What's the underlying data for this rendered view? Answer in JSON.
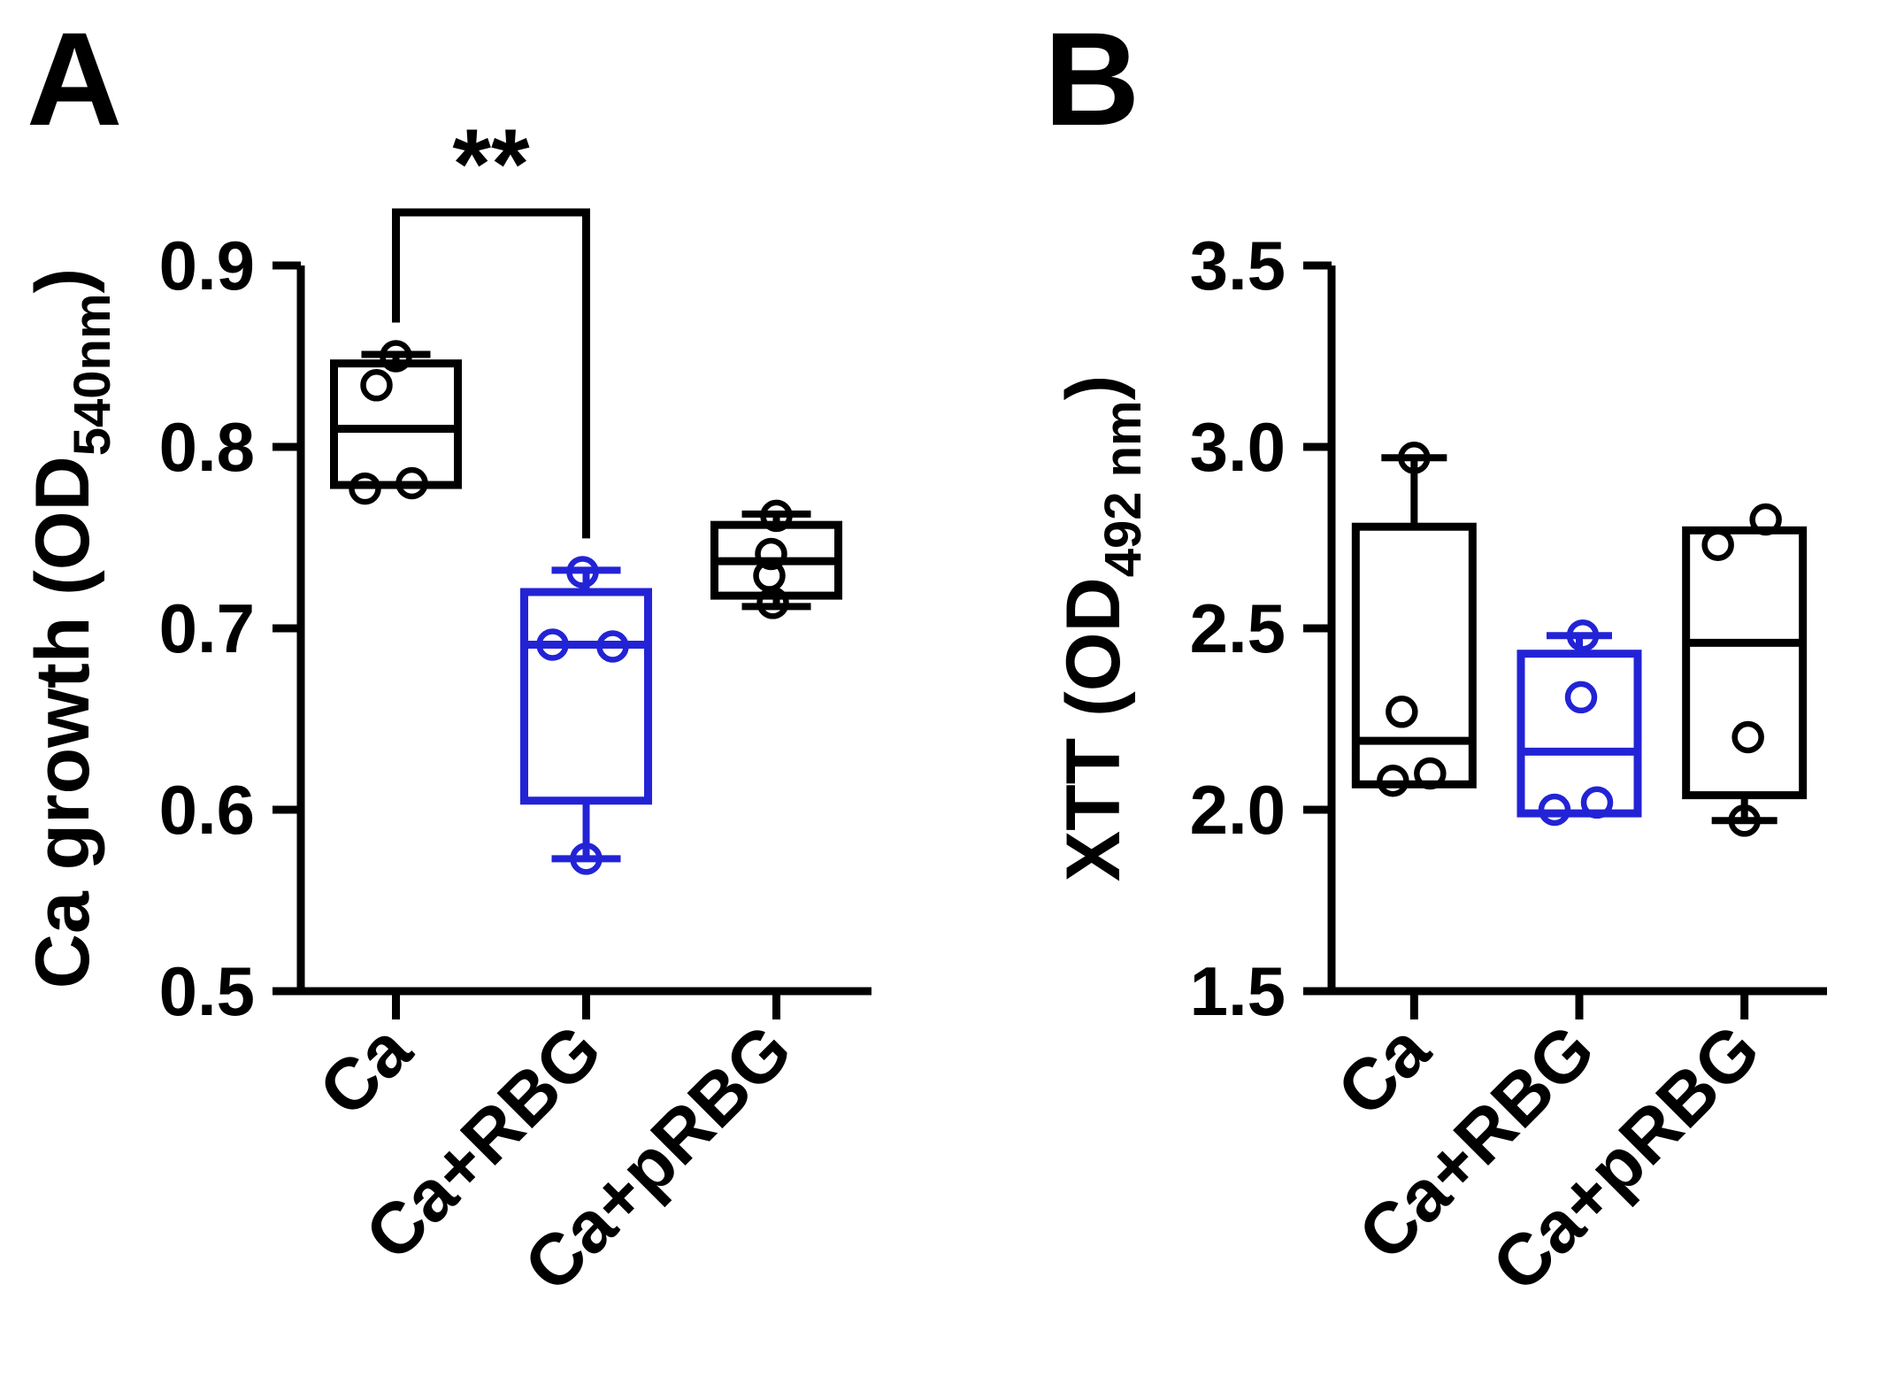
{
  "figure": {
    "background": "#ffffff",
    "accent_blue": "#2323d6",
    "panels": [
      {
        "label": "A"
      },
      {
        "label": "B"
      }
    ]
  },
  "chart_data": [
    {
      "type": "box",
      "panel": "A",
      "ylabel": "Ca growth (OD540nm)",
      "ylabel_parts": {
        "pre": "Ca growth (OD",
        "sub": "540nm",
        "post": ")"
      },
      "ylim": [
        0.5,
        0.9
      ],
      "ytick_values": [
        0.5,
        0.6,
        0.7,
        0.8,
        0.9
      ],
      "yticks": [
        "0.5",
        "0.6",
        "0.7",
        "0.8",
        "0.9"
      ],
      "categories": [
        "Ca",
        "Ca+RBG",
        "Ca+pRBG"
      ],
      "series": [
        {
          "name": "Ca",
          "color": "#000000",
          "q1": 0.779,
          "median": 0.81,
          "q3": 0.846,
          "whisker_low": 0.777,
          "whisker_high": 0.851,
          "points": [
            0.85,
            0.834,
            0.78,
            0.777
          ],
          "point_offsets": [
            0,
            -22,
            18,
            -35
          ]
        },
        {
          "name": "Ca+RBG",
          "color": "#2323d6",
          "q1": 0.605,
          "median": 0.691,
          "q3": 0.72,
          "whisker_low": 0.573,
          "whisker_high": 0.732,
          "points": [
            0.731,
            0.691,
            0.69,
            0.573
          ],
          "point_offsets": [
            -4,
            -38,
            30,
            0
          ]
        },
        {
          "name": "Ca+pRBG",
          "color": "#000000",
          "q1": 0.718,
          "median": 0.737,
          "q3": 0.757,
          "whisker_low": 0.712,
          "whisker_high": 0.763,
          "points": [
            0.762,
            0.741,
            0.729,
            0.714
          ],
          "point_offsets": [
            0,
            -6,
            -8,
            -4
          ]
        }
      ],
      "annotation": {
        "type": "bracket",
        "from": 0,
        "to": 1,
        "label": "**"
      }
    },
    {
      "type": "box",
      "panel": "B",
      "ylabel": "XTT (OD492 nm)",
      "ylabel_parts": {
        "pre": "XTT (OD",
        "sub": "492 nm",
        "post": ")"
      },
      "ylim": [
        1.5,
        3.5
      ],
      "ytick_values": [
        1.5,
        2.0,
        2.5,
        3.0,
        3.5
      ],
      "yticks": [
        "1.5",
        "2.0",
        "2.5",
        "3.0",
        "3.5"
      ],
      "categories": [
        "Ca",
        "Ca+RBG",
        "Ca+pRBG"
      ],
      "series": [
        {
          "name": "Ca",
          "color": "#000000",
          "q1": 2.07,
          "median": 2.19,
          "q3": 2.78,
          "whisker_low": 2.07,
          "whisker_high": 2.97,
          "points": [
            2.97,
            2.27,
            2.1,
            2.08
          ],
          "point_offsets": [
            0,
            -14,
            18,
            -24
          ]
        },
        {
          "name": "Ca+RBG",
          "color": "#2323d6",
          "q1": 1.99,
          "median": 2.16,
          "q3": 2.43,
          "whisker_low": 1.99,
          "whisker_high": 2.48,
          "points": [
            2.48,
            2.31,
            2.0,
            2.02
          ],
          "point_offsets": [
            4,
            2,
            -28,
            20
          ]
        },
        {
          "name": "Ca+pRBG",
          "color": "#000000",
          "q1": 2.04,
          "median": 2.46,
          "q3": 2.77,
          "whisker_low": 1.97,
          "whisker_high": 2.78,
          "points": [
            2.73,
            2.8,
            2.2,
            1.97
          ],
          "point_offsets": [
            -30,
            24,
            4,
            0
          ]
        }
      ],
      "annotation": null
    }
  ]
}
